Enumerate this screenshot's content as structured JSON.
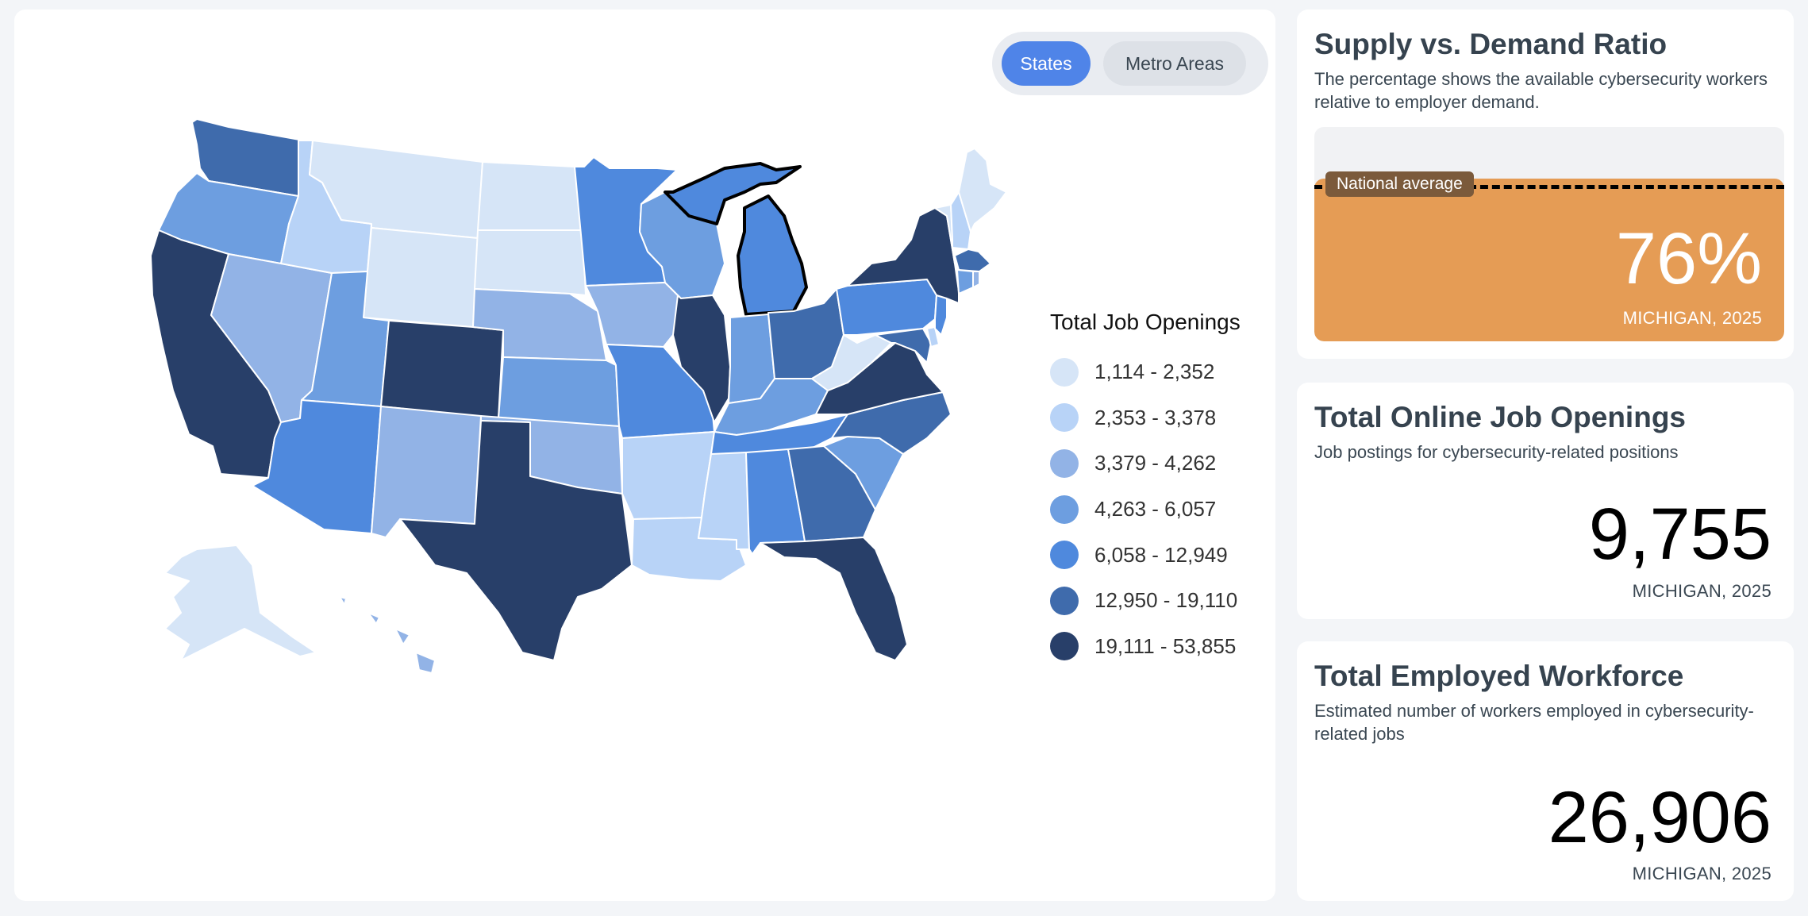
{
  "toggle": {
    "states_label": "States",
    "metro_label": "Metro Areas"
  },
  "legend": {
    "title": "Total Job Openings",
    "items": [
      {
        "label": "1,114 - 2,352",
        "color": "#d6e5f7"
      },
      {
        "label": "2,353 - 3,378",
        "color": "#b8d3f7"
      },
      {
        "label": "3,379 - 4,262",
        "color": "#92b3e6"
      },
      {
        "label": "4,263 - 6,057",
        "color": "#6d9ee0"
      },
      {
        "label": "6,058 - 12,949",
        "color": "#4f89dd"
      },
      {
        "label": "12,950 - 19,110",
        "color": "#3f6bac"
      },
      {
        "label": "19,111 - 53,855",
        "color": "#283f69"
      }
    ]
  },
  "map": {
    "selected_state": "Michigan"
  },
  "ratio_card": {
    "title": "Supply vs. Demand Ratio",
    "description": "The percentage shows the available cybersecurity workers relative to employer demand.",
    "national_average_label": "National average",
    "value": "76%",
    "fill_fraction": 0.76,
    "location": "MICHIGAN, 2025",
    "fill_color": "#e59c55"
  },
  "openings_card": {
    "title": "Total Online Job Openings",
    "description": "Job postings for cybersecurity-related positions",
    "value": "9,755",
    "location": "MICHIGAN, 2025"
  },
  "workforce_card": {
    "title": "Total Employed Workforce",
    "description": "Estimated number of workers employed in cybersecurity-related jobs",
    "value": "26,906",
    "location": "MICHIGAN, 2025"
  }
}
